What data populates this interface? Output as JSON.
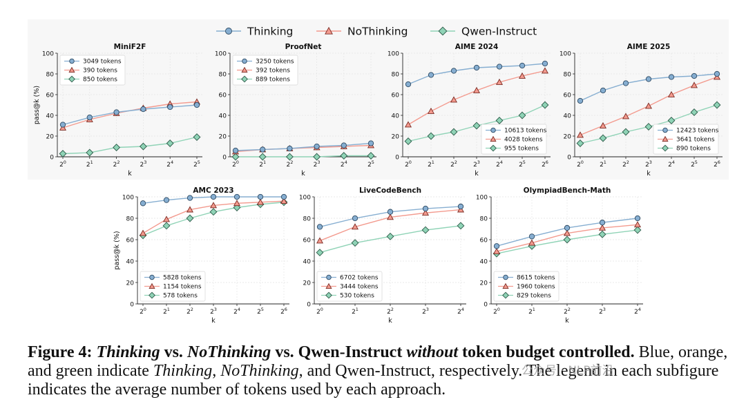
{
  "figure": {
    "legend": [
      {
        "label": "Thinking",
        "color": "#86aed1",
        "marker": "circle"
      },
      {
        "label": "NoThinking",
        "color": "#f39a8e",
        "marker": "triangle"
      },
      {
        "label": "Qwen-Instruct",
        "color": "#8fd3b6",
        "marker": "diamond"
      }
    ],
    "ylabel": "pass@k (%)",
    "xlabel": "k"
  },
  "chart_data": [
    {
      "type": "line",
      "title": "MiniF2F",
      "xlabel": "k",
      "ylabel": "pass@k (%)",
      "ylim": [
        0,
        100
      ],
      "x": [
        "2^0",
        "2^1",
        "2^2",
        "2^3",
        "2^4",
        "2^5"
      ],
      "series": [
        {
          "name": "Thinking",
          "legend": "3049 tokens",
          "values": [
            31,
            38,
            43,
            46,
            48,
            50
          ]
        },
        {
          "name": "NoThinking",
          "legend": "390 tokens",
          "values": [
            28,
            36,
            42,
            47,
            51,
            53
          ]
        },
        {
          "name": "Qwen-Instruct",
          "legend": "850 tokens",
          "values": [
            3,
            4,
            9,
            10,
            13,
            19
          ]
        }
      ],
      "legend_loc": "upper-left"
    },
    {
      "type": "line",
      "title": "ProofNet",
      "xlabel": "k",
      "ylabel": "",
      "ylim": [
        0,
        100
      ],
      "x": [
        "2^0",
        "2^1",
        "2^2",
        "2^3",
        "2^4",
        "2^5"
      ],
      "series": [
        {
          "name": "Thinking",
          "legend": "3250 tokens",
          "values": [
            6,
            7,
            8,
            10,
            11,
            13
          ]
        },
        {
          "name": "NoThinking",
          "legend": "392 tokens",
          "values": [
            5,
            7,
            8,
            9,
            10,
            11
          ]
        },
        {
          "name": "Qwen-Instruct",
          "legend": "889 tokens",
          "values": [
            0,
            0,
            0,
            0,
            1,
            1
          ]
        }
      ],
      "legend_loc": "upper-left"
    },
    {
      "type": "line",
      "title": "AIME 2024",
      "xlabel": "k",
      "ylabel": "",
      "ylim": [
        0,
        100
      ],
      "x": [
        "2^0",
        "2^1",
        "2^2",
        "2^3",
        "2^4",
        "2^5",
        "2^6"
      ],
      "series": [
        {
          "name": "Thinking",
          "legend": "10613 tokens",
          "values": [
            70,
            79,
            83,
            86,
            87,
            88,
            90
          ]
        },
        {
          "name": "NoThinking",
          "legend": "4028 tokens",
          "values": [
            31,
            44,
            55,
            64,
            72,
            78,
            83
          ]
        },
        {
          "name": "Qwen-Instruct",
          "legend": "955 tokens",
          "values": [
            15,
            20,
            24,
            30,
            35,
            40,
            50
          ]
        }
      ],
      "legend_loc": "lower-right"
    },
    {
      "type": "line",
      "title": "AIME 2025",
      "xlabel": "k",
      "ylabel": "",
      "ylim": [
        0,
        100
      ],
      "x": [
        "2^0",
        "2^1",
        "2^2",
        "2^3",
        "2^4",
        "2^5",
        "2^6"
      ],
      "series": [
        {
          "name": "Thinking",
          "legend": "12423 tokens",
          "values": [
            54,
            64,
            71,
            75,
            77,
            78,
            80
          ]
        },
        {
          "name": "NoThinking",
          "legend": "3641 tokens",
          "values": [
            21,
            30,
            39,
            49,
            60,
            69,
            77
          ]
        },
        {
          "name": "Qwen-Instruct",
          "legend": "890 tokens",
          "values": [
            13,
            18,
            24,
            29,
            35,
            43,
            50
          ]
        }
      ],
      "legend_loc": "lower-right"
    },
    {
      "type": "line",
      "title": "AMC 2023",
      "xlabel": "k",
      "ylabel": "pass@k (%)",
      "ylim": [
        0,
        100
      ],
      "x": [
        "2^0",
        "2^1",
        "2^2",
        "2^3",
        "2^4",
        "2^5",
        "2^6"
      ],
      "series": [
        {
          "name": "Thinking",
          "legend": "5828 tokens",
          "values": [
            94,
            97,
            99,
            100,
            100,
            100,
            100
          ]
        },
        {
          "name": "NoThinking",
          "legend": "1154 tokens",
          "values": [
            66,
            79,
            88,
            92,
            94,
            95,
            96
          ]
        },
        {
          "name": "Qwen-Instruct",
          "legend": "578 tokens",
          "values": [
            64,
            73,
            80,
            86,
            90,
            93,
            95
          ]
        }
      ],
      "legend_loc": "lower-left"
    },
    {
      "type": "line",
      "title": "LiveCodeBench",
      "xlabel": "k",
      "ylabel": "",
      "ylim": [
        0,
        100
      ],
      "x": [
        "2^0",
        "2^1",
        "2^2",
        "2^3",
        "2^4"
      ],
      "series": [
        {
          "name": "Thinking",
          "legend": "6702 tokens",
          "values": [
            72,
            80,
            86,
            89,
            91
          ]
        },
        {
          "name": "NoThinking",
          "legend": "3444 tokens",
          "values": [
            59,
            72,
            81,
            85,
            88
          ]
        },
        {
          "name": "Qwen-Instruct",
          "legend": "530 tokens",
          "values": [
            48,
            57,
            63,
            69,
            73
          ]
        }
      ],
      "legend_loc": "lower-left"
    },
    {
      "type": "line",
      "title": "OlympiadBench-Math",
      "xlabel": "k",
      "ylabel": "",
      "ylim": [
        0,
        100
      ],
      "x": [
        "2^0",
        "2^1",
        "2^2",
        "2^3",
        "2^4"
      ],
      "series": [
        {
          "name": "Thinking",
          "legend": "8615 tokens",
          "values": [
            54,
            63,
            71,
            76,
            80
          ]
        },
        {
          "name": "NoThinking",
          "legend": "1960 tokens",
          "values": [
            49,
            57,
            66,
            71,
            74
          ]
        },
        {
          "name": "Qwen-Instruct",
          "legend": "829 tokens",
          "values": [
            47,
            54,
            60,
            65,
            69
          ]
        }
      ],
      "legend_loc": "lower-left"
    }
  ],
  "caption": {
    "label": "Figure 4:",
    "title_thinking": "Thinking",
    "title_vs1": " vs. ",
    "title_nothinking": "NoThinking",
    "title_vs2": " vs. Qwen-Instruct ",
    "title_without": "without",
    "title_rest": " token budget controlled.",
    "body_pre": " Blue, orange, and green indicate ",
    "body_thinking": "Thinking",
    "body_sep": ", ",
    "body_nothinking": "NoThinking",
    "body_post": ", and Qwen-Instruct, respectively. The legend in each subfigure indicates the average number of tokens used by each approach."
  },
  "watermark": "公众号 · NLP前沿"
}
